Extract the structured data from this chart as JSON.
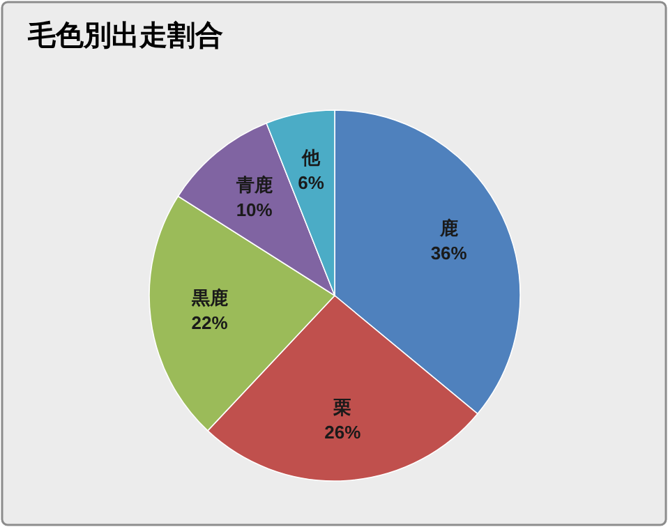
{
  "chart_data": {
    "type": "pie",
    "title": "毛色別出走割合",
    "categories": [
      "鹿",
      "栗",
      "黒鹿",
      "青鹿",
      "他"
    ],
    "values": [
      36,
      26,
      22,
      10,
      6
    ],
    "value_labels": [
      "36%",
      "26%",
      "22%",
      "10%",
      "6%"
    ],
    "colors": [
      "#4f81bd",
      "#c0504d",
      "#9bbb59",
      "#8064a2",
      "#4bacc6"
    ]
  }
}
